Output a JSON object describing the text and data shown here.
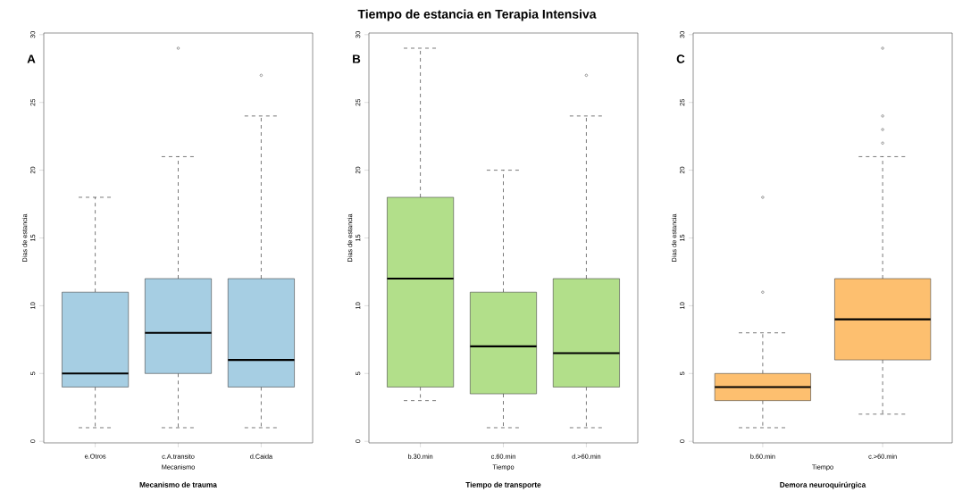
{
  "chart_data": [
    {
      "type": "box",
      "categories": [
        "e.Otros",
        "c.A.transito",
        "d.Caida"
      ],
      "color": "#a6cee3",
      "ylabel": "Dias de estancia",
      "xlabel": "Mecanismo",
      "subtitle": "Mecanismo de trauma",
      "annotations": [
        "A"
      ],
      "ylim": [
        -0.12,
        30.12
      ],
      "yticks": [
        0,
        5,
        10,
        15,
        20,
        25,
        30
      ],
      "boxes": [
        {
          "low": 1,
          "q1": 4,
          "median": 5,
          "q3": 11,
          "high": 18
        },
        {
          "low": 1,
          "q1": 5,
          "median": 8,
          "q3": 12,
          "high": 21,
          "outliers": [
            29
          ]
        },
        {
          "low": 1,
          "q1": 4,
          "median": 6,
          "q3": 12,
          "high": 24,
          "outliers": [
            27
          ]
        }
      ]
    },
    {
      "type": "box",
      "title": "Tiempo de estancia en Terapia Intensiva",
      "categories": [
        "b.30.min",
        "c.60.min",
        "d.>60.min"
      ],
      "color": "#b2df8a",
      "ylabel": "Dias de estancia",
      "xlabel": "Tiempo",
      "subtitle": "Tiempo de transporte",
      "annotations": [
        "B"
      ],
      "ylim": [
        -0.12,
        30.12
      ],
      "yticks": [
        0,
        5,
        10,
        15,
        20,
        25,
        30
      ],
      "boxes": [
        {
          "low": 3,
          "q1": 4,
          "median": 12,
          "q3": 18,
          "high": 29
        },
        {
          "low": 1,
          "q1": 3.5,
          "median": 7,
          "q3": 11,
          "high": 20
        },
        {
          "low": 1,
          "q1": 4,
          "median": 6.5,
          "q3": 12,
          "high": 24,
          "outliers": [
            27
          ]
        }
      ]
    },
    {
      "type": "box",
      "categories": [
        "b.60.min",
        "c.>60.min"
      ],
      "color": "#fdbf6f",
      "ylabel": "Dias de estancia",
      "xlabel": "Tiempo",
      "subtitle": "Demora neuroquirúrgica",
      "annotations": [
        "C"
      ],
      "ylim": [
        -0.12,
        30.12
      ],
      "yticks": [
        0,
        5,
        10,
        15,
        20,
        25,
        30
      ],
      "boxes": [
        {
          "low": 1,
          "q1": 3,
          "median": 4,
          "q3": 5,
          "high": 8,
          "outliers": [
            11,
            18
          ]
        },
        {
          "low": 2,
          "q1": 6,
          "median": 9,
          "q3": 12,
          "high": 21,
          "outliers": [
            22,
            23,
            24,
            29
          ]
        }
      ]
    }
  ]
}
